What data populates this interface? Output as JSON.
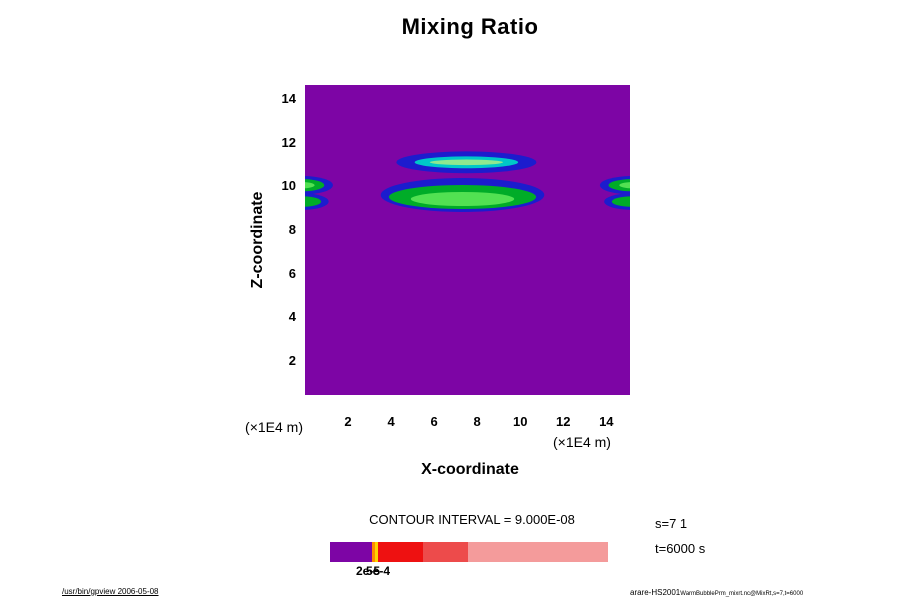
{
  "title": "Mixing Ratio",
  "axes": {
    "x_label": "X-coordinate",
    "z_label": "Z-coordinate",
    "x_unit_left": "(×1E4 m)",
    "x_unit_right": "(×1E4 m)",
    "x_ticks": [
      2,
      4,
      6,
      8,
      10,
      12,
      14
    ],
    "z_ticks": [
      2,
      4,
      6,
      8,
      10,
      12,
      14
    ]
  },
  "contour_interval_label": "CONTOUR INTERVAL = 9.000E-08",
  "legend": {
    "annotation_s": "s=7 1",
    "annotation_t": "t=6000 s",
    "colorbar": {
      "segments": [
        {
          "color": "#7D05A5",
          "frac": 0.15
        },
        {
          "color": "#FF8C00",
          "frac": 0.013
        },
        {
          "color": "#FFD400",
          "frac": 0.01
        },
        {
          "color": "#EE1111",
          "frac": 0.163
        },
        {
          "color": "#ED4B4B",
          "frac": 0.16
        },
        {
          "color": "#F49B9B",
          "frac": 0.504
        }
      ],
      "tick_labels": [
        {
          "text": "2e-5",
          "dx": 26
        },
        {
          "text": "5e-4",
          "dx": 36
        }
      ]
    }
  },
  "footer": {
    "left": "/usr/bin/gpview 2006-05-08",
    "right_main": "arare-HS2001",
    "right_small": "WarmBubblePrm_mixrt.nc@MixRt,s=7,t=6000"
  },
  "chart_data": {
    "type": "contour",
    "title": "Mixing Ratio",
    "xlabel": "X-coordinate (×1E4 m)",
    "ylabel": "Z-coordinate (×1E4 m)",
    "x_range": [
      0,
      15.1
    ],
    "z_range": [
      0.5,
      14.7
    ],
    "x_tick_values": [
      2,
      4,
      6,
      8,
      10,
      12,
      14
    ],
    "z_tick_values": [
      2,
      4,
      6,
      8,
      10,
      12,
      14
    ],
    "contour_interval": 9e-08,
    "background_color": "#7D05A5",
    "level_colors": {
      "blue": "#1C1CCE",
      "green": "#00AC28",
      "bright": "#52E152",
      "cyan": "#00C8C8",
      "pale": "#8FE88F"
    },
    "features_note": "Low background mixing ratio everywhere (purple); elevated plumes near z=9.5-11.2: a wide central plume at x≈4-11, a thin band above it at z≈11.1, and periodic boundary blobs at the left and right edges near z≈9-10.5.",
    "blobs": [
      {
        "x": 7.32,
        "z": 9.65,
        "rx": 3.8,
        "rz": 0.78,
        "color": "blue"
      },
      {
        "x": 7.32,
        "z": 9.56,
        "rx": 3.42,
        "rz": 0.55,
        "color": "green"
      },
      {
        "x": 7.32,
        "z": 9.47,
        "rx": 2.4,
        "rz": 0.32,
        "color": "bright"
      },
      {
        "x": 7.5,
        "z": 11.15,
        "rx": 3.25,
        "rz": 0.5,
        "color": "blue"
      },
      {
        "x": 7.5,
        "z": 11.15,
        "rx": 2.4,
        "rz": 0.27,
        "color": "cyan"
      },
      {
        "x": 7.5,
        "z": 11.15,
        "rx": 1.7,
        "rz": 0.13,
        "color": "pale"
      },
      {
        "x": -0.1,
        "z": 10.1,
        "rx": 1.4,
        "rz": 0.42,
        "color": "blue"
      },
      {
        "x": -0.1,
        "z": 10.1,
        "rx": 1.0,
        "rz": 0.28,
        "color": "green"
      },
      {
        "x": -0.1,
        "z": 10.1,
        "rx": 0.55,
        "rz": 0.14,
        "color": "bright"
      },
      {
        "x": -0.1,
        "z": 9.35,
        "rx": 1.2,
        "rz": 0.38,
        "color": "blue"
      },
      {
        "x": -0.1,
        "z": 9.35,
        "rx": 0.85,
        "rz": 0.24,
        "color": "green"
      },
      {
        "x": 15.2,
        "z": 10.1,
        "rx": 1.5,
        "rz": 0.42,
        "color": "blue"
      },
      {
        "x": 15.2,
        "z": 10.1,
        "rx": 1.1,
        "rz": 0.28,
        "color": "green"
      },
      {
        "x": 15.2,
        "z": 10.1,
        "rx": 0.6,
        "rz": 0.14,
        "color": "bright"
      },
      {
        "x": 15.2,
        "z": 9.35,
        "rx": 1.3,
        "rz": 0.38,
        "color": "blue"
      },
      {
        "x": 15.2,
        "z": 9.35,
        "rx": 0.95,
        "rz": 0.24,
        "color": "green"
      }
    ]
  }
}
